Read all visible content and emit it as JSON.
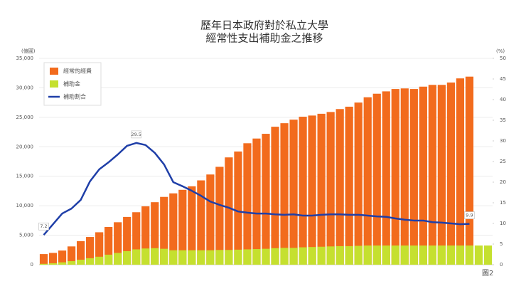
{
  "chart_data": {
    "type": "bar",
    "title": "歷年日本政府對於私立大學",
    "subtitle": "經常性支出補助金之推移",
    "y_label": "(億圓)",
    "y2_label": "(%)",
    "footer": "圖2",
    "categories": [
      null,
      null,
      null,
      null,
      null,
      null,
      null,
      null,
      null,
      null,
      null,
      null,
      null,
      null,
      null,
      null,
      null,
      null,
      null,
      null,
      null,
      null,
      null,
      null,
      null,
      null,
      null,
      null,
      null,
      null,
      null,
      null,
      null,
      null,
      null,
      null,
      null,
      null,
      null,
      null,
      null,
      null,
      null,
      null,
      null,
      null,
      null,
      null,
      null
    ],
    "ylim": [
      0,
      35000
    ],
    "yticks": [
      0,
      {
        "value": 5000,
        "label": "5,000"
      },
      {
        "value": 10000,
        "label": "10,000"
      },
      {
        "value": 15000,
        "label": "15,000"
      },
      {
        "value": 20000,
        "label": "20,000"
      },
      {
        "value": 25000,
        "label": "25,000"
      },
      {
        "value": 30000,
        "label": "30,000"
      },
      {
        "value": 35000,
        "label": "35,000"
      }
    ],
    "y2lim": [
      0,
      50
    ],
    "y2ticks": [
      0,
      5,
      10,
      15,
      20,
      25,
      30,
      35,
      40,
      45,
      50
    ],
    "grid": true,
    "legend": "upper left",
    "series": [
      {
        "name": "經常的經費",
        "color": "#f26b1d",
        "type": "bar",
        "values": [
          1800,
          2000,
          2400,
          3100,
          4000,
          4700,
          5500,
          6400,
          7200,
          8100,
          8900,
          9900,
          10600,
          11500,
          12100,
          12700,
          13300,
          14300,
          15300,
          16600,
          18200,
          19200,
          20600,
          21400,
          22200,
          23400,
          24000,
          24600,
          25100,
          25300,
          25600,
          25900,
          26400,
          26800,
          27500,
          28400,
          29000,
          29400,
          29800,
          29900,
          29800,
          30200,
          30500,
          30500,
          30900,
          31600,
          31900,
          null,
          null
        ]
      },
      {
        "name": "補助金",
        "color": "#c5e02f",
        "type": "bar",
        "values": [
          150,
          250,
          400,
          600,
          850,
          1100,
          1350,
          1700,
          2000,
          2300,
          2600,
          2750,
          2800,
          2700,
          2450,
          2450,
          2450,
          2450,
          2450,
          2500,
          2500,
          2550,
          2600,
          2650,
          2700,
          2800,
          2850,
          2850,
          2950,
          3000,
          3050,
          3100,
          3150,
          3150,
          3200,
          3250,
          3250,
          3250,
          3250,
          3250,
          3250,
          3250,
          3250,
          3250,
          3250,
          3250,
          3250,
          3250,
          3250
        ]
      },
      {
        "name": "補助割合",
        "color": "#1f3fa8",
        "type": "line",
        "axis": "y2",
        "values": [
          7.2,
          9.8,
          12.4,
          13.6,
          15.7,
          20.2,
          23.1,
          24.8,
          26.7,
          28.8,
          29.5,
          29.0,
          27.1,
          24.3,
          20.0,
          19.0,
          17.9,
          16.7,
          15.3,
          14.5,
          13.8,
          12.9,
          12.6,
          12.4,
          12.4,
          12.2,
          12.1,
          12.2,
          11.9,
          11.9,
          12.1,
          12.2,
          12.2,
          12.1,
          12.1,
          11.9,
          11.7,
          11.6,
          11.2,
          10.9,
          10.7,
          10.7,
          10.3,
          10.2,
          10.0,
          9.8,
          9.9,
          null,
          null
        ]
      }
    ]
  }
}
